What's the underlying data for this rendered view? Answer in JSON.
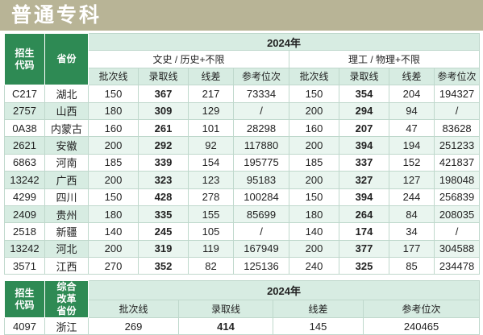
{
  "title": "普通专科",
  "table1": {
    "col_code": "招生代码",
    "col_province": "省份",
    "year": "2024年",
    "group_arts": "文史 / 历史+不限",
    "group_science": "理工 / 物理+不限",
    "sub": [
      "批次线",
      "录取线",
      "线差",
      "参考位次",
      "批次线",
      "录取线",
      "线差",
      "参考位次"
    ],
    "rows": [
      {
        "code": "C217",
        "province": "湖北",
        "a_batch": "150",
        "a_score": "367",
        "a_diff": "217",
        "a_rank": "73334",
        "s_batch": "150",
        "s_score": "354",
        "s_diff": "204",
        "s_rank": "194327"
      },
      {
        "code": "2757",
        "province": "山西",
        "a_batch": "180",
        "a_score": "309",
        "a_diff": "129",
        "a_rank": "/",
        "s_batch": "200",
        "s_score": "294",
        "s_diff": "94",
        "s_rank": "/"
      },
      {
        "code": "0A38",
        "province": "内蒙古",
        "a_batch": "160",
        "a_score": "261",
        "a_diff": "101",
        "a_rank": "28298",
        "s_batch": "160",
        "s_score": "207",
        "s_diff": "47",
        "s_rank": "83628"
      },
      {
        "code": "2621",
        "province": "安徽",
        "a_batch": "200",
        "a_score": "292",
        "a_diff": "92",
        "a_rank": "117880",
        "s_batch": "200",
        "s_score": "394",
        "s_diff": "194",
        "s_rank": "251233"
      },
      {
        "code": "6863",
        "province": "河南",
        "a_batch": "185",
        "a_score": "339",
        "a_diff": "154",
        "a_rank": "195775",
        "s_batch": "185",
        "s_score": "337",
        "s_diff": "152",
        "s_rank": "421837"
      },
      {
        "code": "13242",
        "province": "广西",
        "a_batch": "200",
        "a_score": "323",
        "a_diff": "123",
        "a_rank": "95183",
        "s_batch": "200",
        "s_score": "327",
        "s_diff": "127",
        "s_rank": "198048"
      },
      {
        "code": "4299",
        "province": "四川",
        "a_batch": "150",
        "a_score": "428",
        "a_diff": "278",
        "a_rank": "100284",
        "s_batch": "150",
        "s_score": "394",
        "s_diff": "244",
        "s_rank": "256839"
      },
      {
        "code": "2409",
        "province": "贵州",
        "a_batch": "180",
        "a_score": "335",
        "a_diff": "155",
        "a_rank": "85699",
        "s_batch": "180",
        "s_score": "264",
        "s_diff": "84",
        "s_rank": "208035"
      },
      {
        "code": "2518",
        "province": "新疆",
        "a_batch": "140",
        "a_score": "245",
        "a_diff": "105",
        "a_rank": "/",
        "s_batch": "140",
        "s_score": "174",
        "s_diff": "34",
        "s_rank": "/"
      },
      {
        "code": "13242",
        "province": "河北",
        "a_batch": "200",
        "a_score": "319",
        "a_diff": "119",
        "a_rank": "167949",
        "s_batch": "200",
        "s_score": "377",
        "s_diff": "177",
        "s_rank": "304588"
      },
      {
        "code": "3571",
        "province": "江西",
        "a_batch": "270",
        "a_score": "352",
        "a_diff": "82",
        "a_rank": "125136",
        "s_batch": "240",
        "s_score": "325",
        "s_diff": "85",
        "s_rank": "234478"
      }
    ]
  },
  "table2": {
    "col_code": "招生代码",
    "col_province": "综合改革省份",
    "year": "2024年",
    "sub": [
      "批次线",
      "录取线",
      "线差",
      "参考位次"
    ],
    "row": {
      "code": "4097",
      "province": "浙江",
      "batch": "269",
      "score": "414",
      "diff": "145",
      "rank": "240465"
    }
  }
}
